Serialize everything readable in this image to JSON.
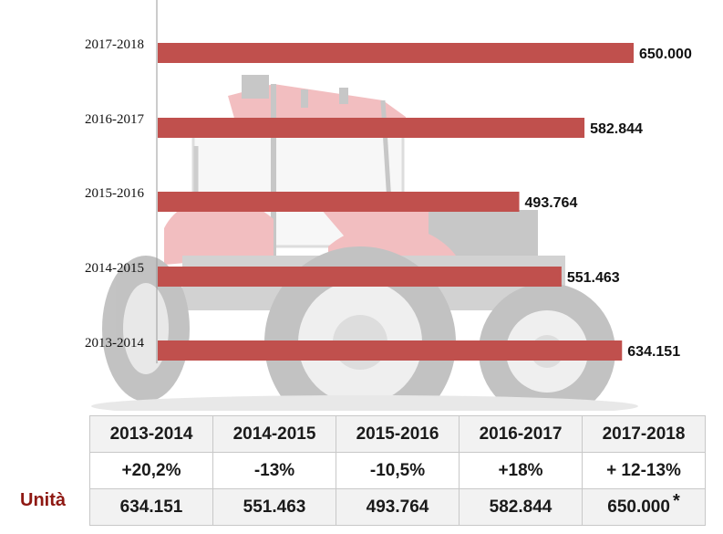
{
  "chart_data": {
    "type": "bar",
    "orientation": "horizontal",
    "categories": [
      "2017-2018",
      "2016-2017",
      "2015-2016",
      "2014-2015",
      "2013-2014"
    ],
    "values": [
      650000,
      582844,
      493764,
      551463,
      634151
    ],
    "value_labels": [
      "650.000",
      "582.844",
      "493.764",
      "551.463",
      "634.151"
    ],
    "bar_color": "#c0504d",
    "xlim": [
      0,
      700000
    ],
    "grid": false,
    "legend": "none"
  },
  "table": {
    "headers": [
      "2013-2014",
      "2014-2015",
      "2015-2016",
      "2016-2017",
      "2017-2018"
    ],
    "changes": [
      "+20,2%",
      "-13%",
      "-10,5%",
      "+18%",
      "+ 12-13%"
    ],
    "unit_label": "Unità",
    "units": [
      "634.151",
      "551.463",
      "493.764",
      "582.844",
      "650.000"
    ],
    "footnote_mark": "*"
  },
  "colors": {
    "bar": "#c0504d",
    "unit_label": "#8e1812",
    "tractor_body": "#d9383f"
  },
  "background_image": "tractor"
}
